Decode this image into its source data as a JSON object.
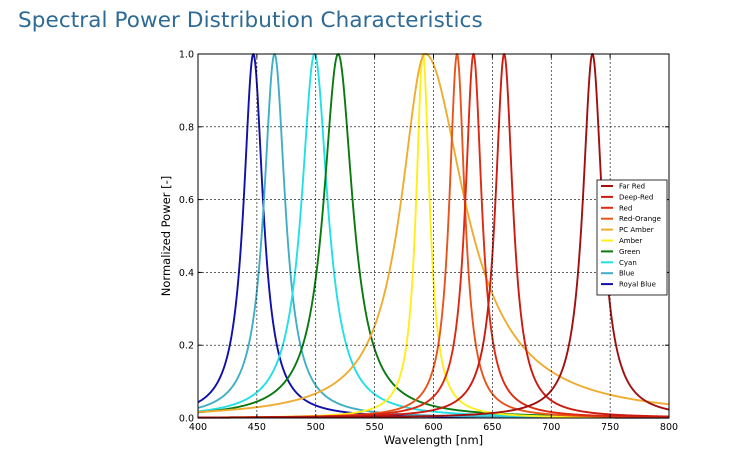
{
  "page": {
    "title": "Spectral Power Distribution Characteristics"
  },
  "chart_data": {
    "type": "line",
    "xlabel": "Wavelength [nm]",
    "ylabel": "Normalized Power [-]",
    "xlim": [
      400,
      800
    ],
    "ylim": [
      0,
      1.0
    ],
    "x_ticks": [
      400,
      450,
      500,
      550,
      600,
      650,
      700,
      750,
      800
    ],
    "y_ticks": [
      0.0,
      0.2,
      0.4,
      0.6,
      0.8,
      1.0
    ],
    "y_tick_labels": [
      "0.0",
      "0.2",
      "0.4",
      "0.6",
      "0.8",
      "1.0"
    ],
    "grid": true,
    "legend_position": "right",
    "series": [
      {
        "name": "Far Red",
        "color": "#a01010",
        "peak_nm": 735,
        "fwhm_left_nm": 20,
        "fwhm_right_nm": 20
      },
      {
        "name": "Deep-Red",
        "color": "#cc1a10",
        "peak_nm": 660,
        "fwhm_left_nm": 18,
        "fwhm_right_nm": 18
      },
      {
        "name": "Red",
        "color": "#dd2a10",
        "peak_nm": 634,
        "fwhm_left_nm": 17,
        "fwhm_right_nm": 17
      },
      {
        "name": "Red-Orange",
        "color": "#e8541c",
        "peak_nm": 620,
        "fwhm_left_nm": 16,
        "fwhm_right_nm": 16
      },
      {
        "name": "PC Amber",
        "color": "#f0ac30",
        "peak_nm": 593,
        "fwhm_left_nm": 50,
        "fwhm_right_nm": 82
      },
      {
        "name": "Amber",
        "color": "#ffee1a",
        "peak_nm": 591,
        "fwhm_left_nm": 14,
        "fwhm_right_nm": 14
      },
      {
        "name": "Green",
        "color": "#0a7a10",
        "peak_nm": 519,
        "fwhm_left_nm": 30,
        "fwhm_right_nm": 30
      },
      {
        "name": "Cyan",
        "color": "#22e0e6",
        "peak_nm": 499,
        "fwhm_left_nm": 27,
        "fwhm_right_nm": 27
      },
      {
        "name": "Blue",
        "color": "#42aec6",
        "peak_nm": 465,
        "fwhm_left_nm": 22,
        "fwhm_right_nm": 22
      },
      {
        "name": "Royal Blue",
        "color": "#1010aa",
        "peak_nm": 447,
        "fwhm_left_nm": 20,
        "fwhm_right_nm": 20
      }
    ]
  }
}
